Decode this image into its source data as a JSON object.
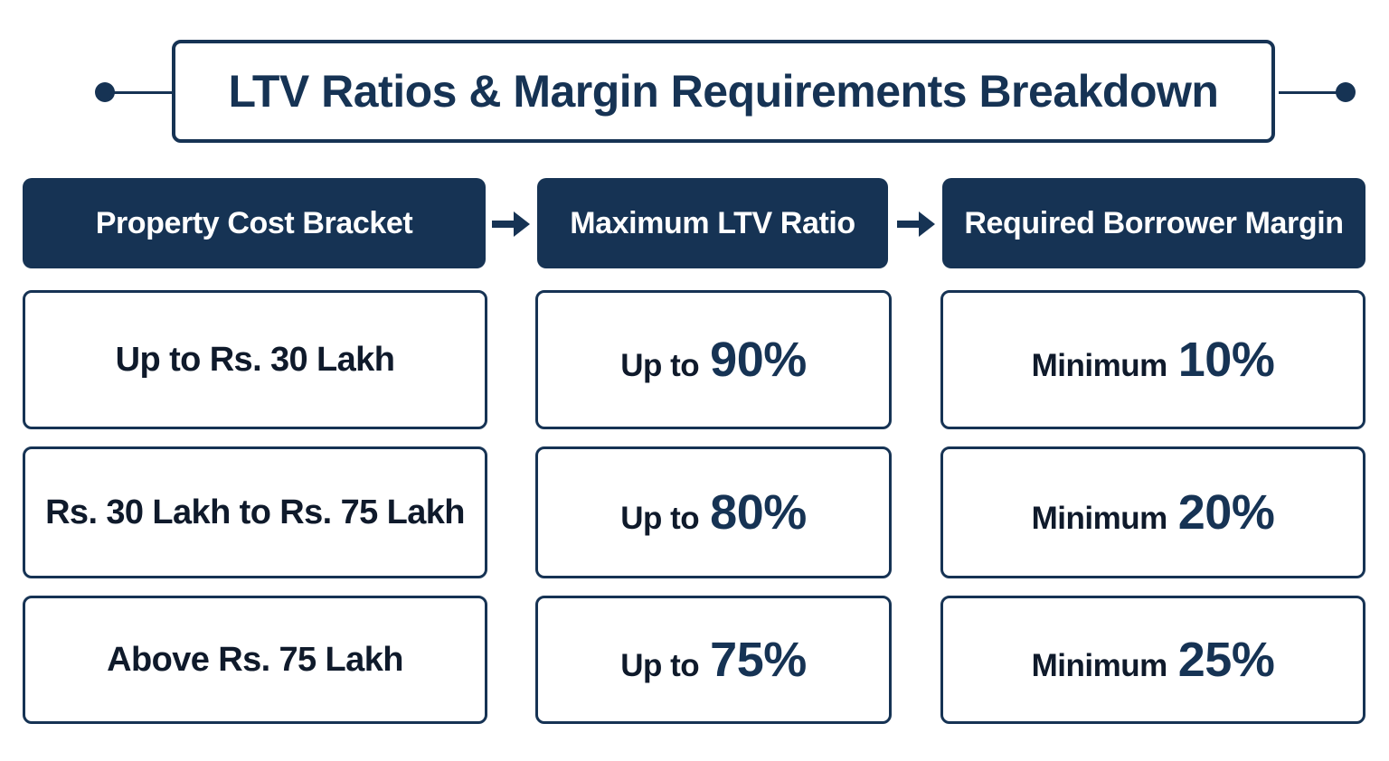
{
  "title": "LTV Ratios & Margin Requirements Breakdown",
  "colors": {
    "primary": "#163354",
    "text": "#0f1a2b",
    "background": "#ffffff"
  },
  "headers": [
    "Property Cost Bracket",
    "Maximum LTV Ratio",
    "Required Borrower Margin"
  ],
  "rows": [
    {
      "bracket": "Up to Rs. 30 Lakh",
      "ltv_prefix": "Up to",
      "ltv_value": "90%",
      "margin_prefix": "Minimum",
      "margin_value": "10%"
    },
    {
      "bracket": "Rs. 30 Lakh to Rs. 75 Lakh",
      "ltv_prefix": "Up to",
      "ltv_value": "80%",
      "margin_prefix": "Minimum",
      "margin_value": "20%"
    },
    {
      "bracket": "Above Rs. 75 Lakh",
      "ltv_prefix": "Up to",
      "ltv_value": "75%",
      "margin_prefix": "Minimum",
      "margin_value": "25%"
    }
  ],
  "icons": {
    "header_connector": "arrow-right-icon",
    "title_decoration": "connector-dot-icon"
  }
}
